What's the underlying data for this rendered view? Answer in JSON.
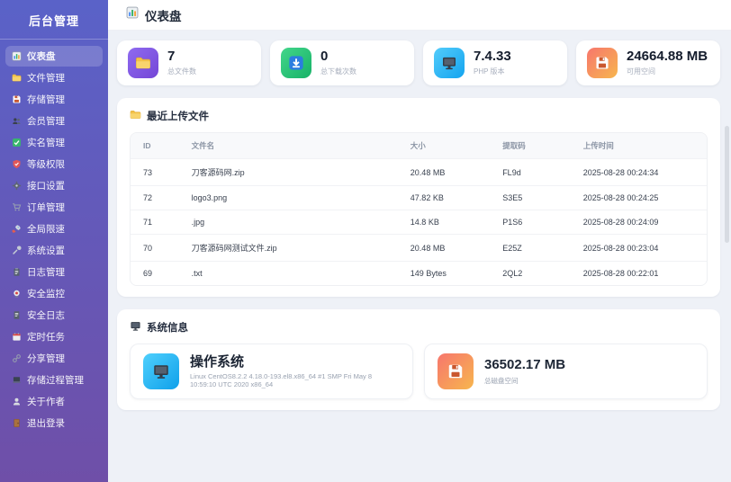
{
  "theme": {
    "sidebar_top": "#5a62c8",
    "sidebar_bottom": "#6f4fa8",
    "background": "#eef1f7",
    "panel": "#ffffff"
  },
  "app": {
    "title": "后台管理"
  },
  "sidebar": {
    "items": [
      {
        "id": "dashboard",
        "icon": "bar-chart",
        "label": "仪表盘",
        "active": true
      },
      {
        "id": "files",
        "icon": "folder",
        "label": "文件管理",
        "active": false
      },
      {
        "id": "storage",
        "icon": "floppy",
        "label": "存储管理",
        "active": false
      },
      {
        "id": "members",
        "icon": "users",
        "label": "会员管理",
        "active": false
      },
      {
        "id": "realname",
        "icon": "check",
        "label": "实名管理",
        "active": false
      },
      {
        "id": "levels",
        "icon": "shield",
        "label": "等级权限",
        "active": false
      },
      {
        "id": "api-settings",
        "icon": "gear",
        "label": "接口设置",
        "active": false
      },
      {
        "id": "orders",
        "icon": "cart",
        "label": "订单管理",
        "active": false
      },
      {
        "id": "speed-limit",
        "icon": "rocket",
        "label": "全局限速",
        "active": false
      },
      {
        "id": "system-settings",
        "icon": "wrench",
        "label": "系统设置",
        "active": false
      },
      {
        "id": "logs",
        "icon": "clipboard",
        "label": "日志管理",
        "active": false
      },
      {
        "id": "security-monitor",
        "icon": "camera",
        "label": "安全监控",
        "active": false
      },
      {
        "id": "security-logs",
        "icon": "doc",
        "label": "安全日志",
        "active": false
      },
      {
        "id": "cron-tasks",
        "icon": "calendar",
        "label": "定时任务",
        "active": false
      },
      {
        "id": "shares",
        "icon": "link",
        "label": "分享管理",
        "active": false
      },
      {
        "id": "stored-procedures",
        "icon": "laptop",
        "label": "存储过程管理",
        "active": false
      },
      {
        "id": "about-author",
        "icon": "user",
        "label": "关于作者",
        "active": false
      },
      {
        "id": "logout",
        "icon": "door",
        "label": "退出登录",
        "active": false
      }
    ]
  },
  "header": {
    "icon": "bar-chart",
    "title": "仪表盘"
  },
  "stats": [
    {
      "id": "total-files",
      "icon": "folder",
      "value": "7",
      "label": "总文件数",
      "grad": [
        "#8f6bf0",
        "#7445d6"
      ]
    },
    {
      "id": "total-downloads",
      "icon": "download",
      "value": "0",
      "label": "总下载次数",
      "grad": [
        "#43d68b",
        "#17b267"
      ]
    },
    {
      "id": "php-version",
      "icon": "monitor",
      "value": "7.4.33",
      "label": "PHP 版本",
      "grad": [
        "#53ccfb",
        "#13a4ef"
      ]
    },
    {
      "id": "free-space",
      "icon": "floppy",
      "value": "24664.88 MB",
      "label": "可用空间",
      "grad": [
        "#f7766d",
        "#f7b64e"
      ]
    }
  ],
  "recent": {
    "icon": "folder",
    "title": "最近上传文件",
    "columns": [
      "ID",
      "文件名",
      "大小",
      "提取码",
      "上传时间"
    ],
    "rows": [
      [
        "73",
        "刀客源码网.zip",
        "20.48 MB",
        "FL9d",
        "2025-08-28 00:24:34"
      ],
      [
        "72",
        "logo3.png",
        "47.82 KB",
        "S3E5",
        "2025-08-28 00:24:25"
      ],
      [
        "71",
        ".jpg",
        "14.8 KB",
        "P1S6",
        "2025-08-28 00:24:09"
      ],
      [
        "70",
        "刀客源码网测试文件.zip",
        "20.48 MB",
        "E25Z",
        "2025-08-28 00:23:04"
      ],
      [
        "69",
        ".txt",
        "149 Bytes",
        "2QL2",
        "2025-08-28 00:22:01"
      ]
    ]
  },
  "system": {
    "icon": "monitor",
    "title": "系统信息",
    "os": {
      "icon": "monitor",
      "title": "操作系统",
      "detail": "Linux CentOS8.2.2 4.18.0-193.el8.x86_64 #1 SMP Fri May 8 10:59:10 UTC 2020 x86_64",
      "grad": [
        "#4fd0fd",
        "#0fa0ea"
      ]
    },
    "disk": {
      "icon": "floppy",
      "value": "36502.17 MB",
      "label": "总磁盘空间",
      "grad": [
        "#f7766d",
        "#f7b64e"
      ]
    }
  }
}
